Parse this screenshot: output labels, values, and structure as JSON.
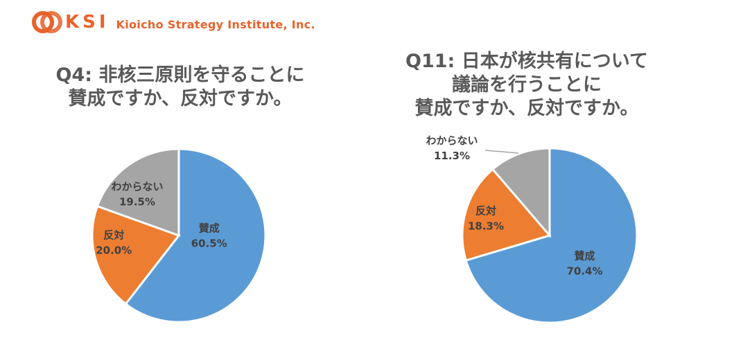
{
  "header": {
    "logo_text": "KSI",
    "company_name": "Kioicho Strategy Institute, Inc.",
    "brand_color": "#e8622b"
  },
  "chart_data": [
    {
      "type": "pie",
      "title": [
        "Q4: 非核三原則を守ることに",
        "賛成ですか、反対ですか。"
      ],
      "slices": [
        {
          "label": "賛成",
          "value": 60.5,
          "value_label": "60.5%",
          "color": "#5b9bd5"
        },
        {
          "label": "反対",
          "value": 20.0,
          "value_label": "20.0%",
          "color": "#ed7d31"
        },
        {
          "label": "わからない",
          "value": 19.5,
          "value_label": "19.5%",
          "color": "#a5a5a5"
        }
      ]
    },
    {
      "type": "pie",
      "title": [
        "Q11: 日本が核共有について",
        "議論を行うことに",
        "賛成ですか、反対ですか。"
      ],
      "slices": [
        {
          "label": "賛成",
          "value": 70.4,
          "value_label": "70.4%",
          "color": "#5b9bd5"
        },
        {
          "label": "反対",
          "value": 18.3,
          "value_label": "18.3%",
          "color": "#ed7d31"
        },
        {
          "label": "わからない",
          "value": 11.3,
          "value_label": "11.3%",
          "color": "#a5a5a5"
        }
      ]
    }
  ]
}
